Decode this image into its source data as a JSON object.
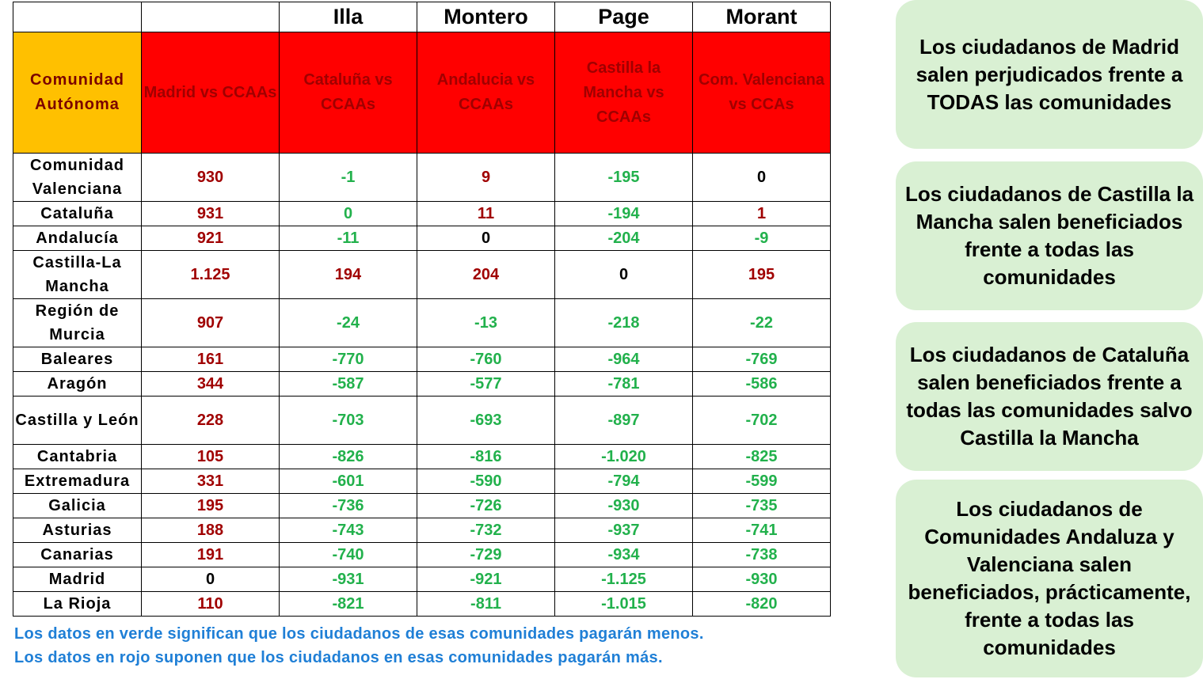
{
  "politician_headers": [
    "",
    "",
    "Illa",
    "Montero",
    "Page",
    "Morant"
  ],
  "comparison_headers": [
    "Comunidad Autónoma",
    "Madrid vs CCAAs",
    "Cataluña vs CCAAs",
    "Andalucia vs CCAAs",
    "Castilla la Mancha vs CCAAs",
    "Com. Valenciana vs CCAs"
  ],
  "rows": [
    {
      "name": "Comunidad Valenciana",
      "tall": true,
      "values": [
        "930",
        "-1",
        "9",
        "-195",
        "0"
      ],
      "signs": [
        "pos",
        "neg",
        "pos",
        "neg",
        "zero"
      ]
    },
    {
      "name": "Cataluña",
      "tall": false,
      "values": [
        "931",
        "0",
        "11",
        "-194",
        "1"
      ],
      "signs": [
        "pos",
        "neg",
        "pos",
        "neg",
        "pos"
      ]
    },
    {
      "name": "Andalucía",
      "tall": false,
      "values": [
        "921",
        "-11",
        "0",
        "-204",
        "-9"
      ],
      "signs": [
        "pos",
        "neg",
        "zero",
        "neg",
        "neg"
      ]
    },
    {
      "name": "Castilla-La Mancha",
      "tall": true,
      "values": [
        "1.125",
        "194",
        "204",
        "0",
        "195"
      ],
      "signs": [
        "pos",
        "pos",
        "pos",
        "zero",
        "pos"
      ]
    },
    {
      "name": "Región de Murcia",
      "tall": true,
      "values": [
        "907",
        "-24",
        "-13",
        "-218",
        "-22"
      ],
      "signs": [
        "pos",
        "neg",
        "neg",
        "neg",
        "neg"
      ]
    },
    {
      "name": "Baleares",
      "tall": false,
      "values": [
        "161",
        "-770",
        "-760",
        "-964",
        "-769"
      ],
      "signs": [
        "pos",
        "neg",
        "neg",
        "neg",
        "neg"
      ]
    },
    {
      "name": "Aragón",
      "tall": false,
      "values": [
        "344",
        "-587",
        "-577",
        "-781",
        "-586"
      ],
      "signs": [
        "pos",
        "neg",
        "neg",
        "neg",
        "neg"
      ]
    },
    {
      "name": "Castilla y León",
      "tall": true,
      "values": [
        "228",
        "-703",
        "-693",
        "-897",
        "-702"
      ],
      "signs": [
        "pos",
        "neg",
        "neg",
        "neg",
        "neg"
      ]
    },
    {
      "name": "Cantabria",
      "tall": false,
      "values": [
        "105",
        "-826",
        "-816",
        "-1.020",
        "-825"
      ],
      "signs": [
        "pos",
        "neg",
        "neg",
        "neg",
        "neg"
      ]
    },
    {
      "name": "Extremadura",
      "tall": false,
      "values": [
        "331",
        "-601",
        "-590",
        "-794",
        "-599"
      ],
      "signs": [
        "pos",
        "neg",
        "neg",
        "neg",
        "neg"
      ]
    },
    {
      "name": "Galicia",
      "tall": false,
      "values": [
        "195",
        "-736",
        "-726",
        "-930",
        "-735"
      ],
      "signs": [
        "pos",
        "neg",
        "neg",
        "neg",
        "neg"
      ]
    },
    {
      "name": "Asturias",
      "tall": false,
      "values": [
        "188",
        "-743",
        "-732",
        "-937",
        "-741"
      ],
      "signs": [
        "pos",
        "neg",
        "neg",
        "neg",
        "neg"
      ]
    },
    {
      "name": "Canarias",
      "tall": false,
      "values": [
        "191",
        "-740",
        "-729",
        "-934",
        "-738"
      ],
      "signs": [
        "pos",
        "neg",
        "neg",
        "neg",
        "neg"
      ]
    },
    {
      "name": "Madrid",
      "tall": false,
      "values": [
        "0",
        "-931",
        "-921",
        "-1.125",
        "-930"
      ],
      "signs": [
        "zero",
        "neg",
        "neg",
        "neg",
        "neg"
      ]
    },
    {
      "name": "La Rioja",
      "tall": false,
      "values": [
        "110",
        "-821",
        "-811",
        "-1.015",
        "-820"
      ],
      "signs": [
        "pos",
        "neg",
        "neg",
        "neg",
        "neg"
      ]
    }
  ],
  "notes": {
    "green": "Los datos en verde significan que los ciudadanos de esas comunidades pagarán menos.",
    "red": "Los datos en rojo suponen que los ciudadanos en esas comunidades pagarán más."
  },
  "boxes": [
    "Los ciudadanos de Madrid salen perjudicados frente a TODAS las comunidades",
    "Los ciudadanos de Castilla la Mancha salen beneficiados frente a todas las comunidades",
    "Los ciudadanos de Cataluña salen beneficiados frente a todas las comunidades salvo Castilla la Mancha",
    "Los ciudadanos de Comunidades Andaluza y Valenciana salen beneficiados, prácticamente,  frente a todas las comunidades"
  ],
  "colors": {
    "header_orange": "#ffc000",
    "header_red": "#ff0000",
    "positive": "#a00000",
    "negative": "#22b14c",
    "note": "#1f7fd6",
    "box": "#d9f0d3"
  }
}
